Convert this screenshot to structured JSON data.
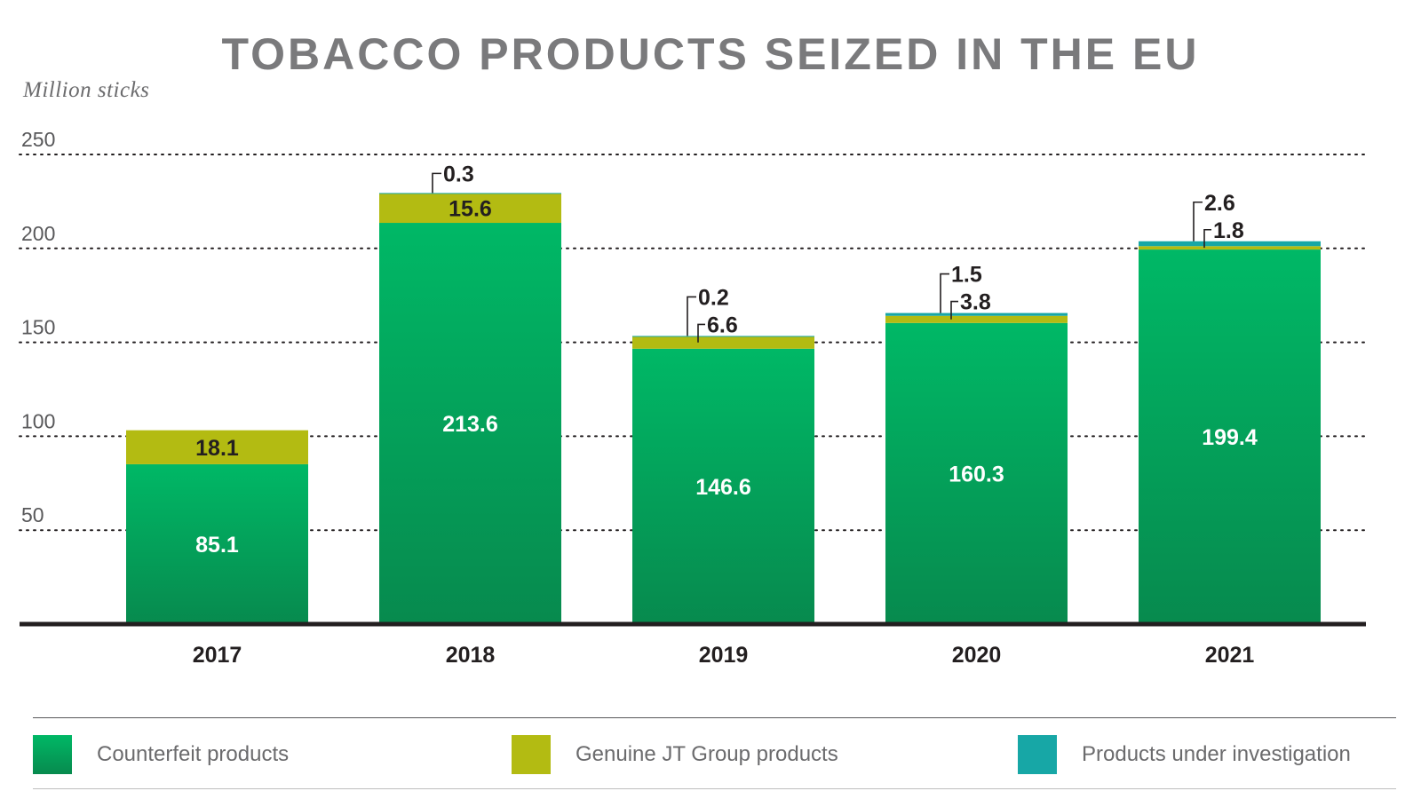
{
  "title": "TOBACCO PRODUCTS SEIZED IN THE EU",
  "unit_label": "Million sticks",
  "colors": {
    "counterfeit_top": "#00b866",
    "counterfeit_bottom": "#078a4e",
    "genuine": "#b3bb12",
    "investigation": "#17a7a6",
    "axis": "#231f20",
    "grid": "#231f20"
  },
  "legend": [
    {
      "label": "Counterfeit products",
      "icon": "green-swatch"
    },
    {
      "label": "Genuine JT Group products",
      "icon": "olive-swatch"
    },
    {
      "label": "Products under investigation",
      "icon": "teal-swatch"
    }
  ],
  "chart_data": {
    "type": "bar",
    "stacked": true,
    "title": "TOBACCO PRODUCTS SEIZED IN THE EU",
    "ylabel": "Million sticks",
    "xlabel": "",
    "ylim": [
      0,
      250
    ],
    "yticks": [
      50,
      100,
      150,
      200,
      250
    ],
    "grid": true,
    "legend_position": "bottom",
    "categories": [
      "2017",
      "2018",
      "2019",
      "2020",
      "2021"
    ],
    "series": [
      {
        "name": "Counterfeit products",
        "values": [
          85.1,
          213.6,
          146.6,
          160.3,
          199.4
        ],
        "labels": [
          "85.1",
          "213.6",
          "146.6",
          "160.3",
          "199.4"
        ]
      },
      {
        "name": "Genuine JT Group products",
        "values": [
          18.1,
          15.6,
          6.6,
          3.8,
          1.8
        ],
        "labels": [
          "18.1",
          "15.6",
          "6.6",
          "3.8",
          "1.8"
        ]
      },
      {
        "name": "Products under investigation",
        "values": [
          0,
          0.3,
          0.2,
          1.5,
          2.6
        ],
        "labels": [
          "",
          "0.3",
          "0.2",
          "1.5",
          "2.6"
        ]
      }
    ]
  }
}
